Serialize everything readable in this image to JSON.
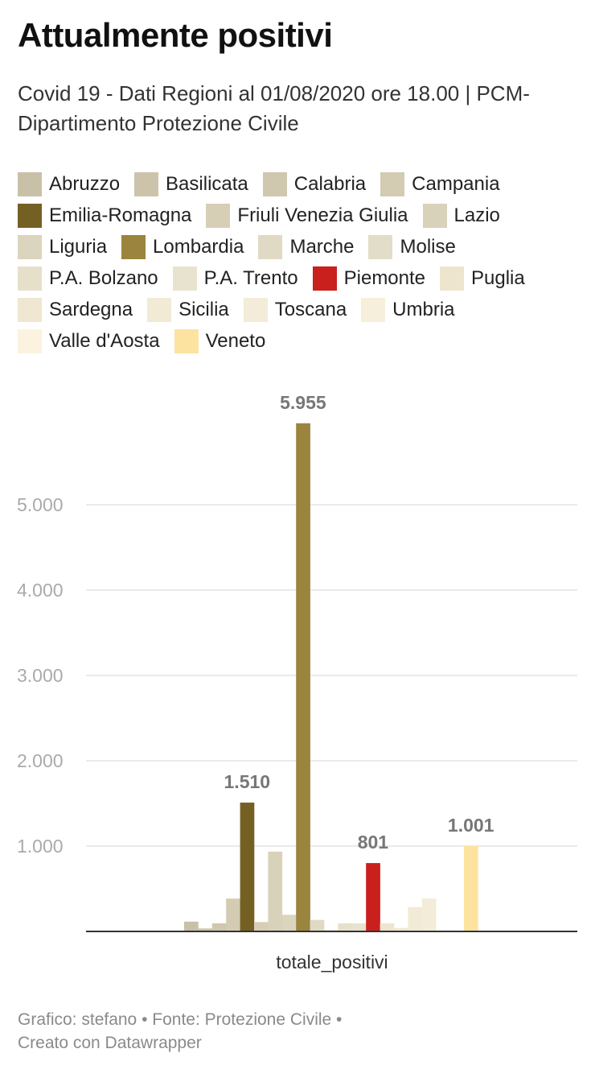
{
  "title": "Attualmente positivi",
  "subtitle": "Covid 19 - Dati Regioni al 01/08/2020 ore 18.00 | PCM- Dipartimento Protezione Civile",
  "footer": {
    "line1": "Grafico: stefano • Fonte: Protezione Civile •",
    "line2": "Creato con Datawrapper"
  },
  "chart_data": {
    "type": "bar",
    "title": "Attualmente positivi",
    "categories": [
      "totale_positivi"
    ],
    "xlabel": "",
    "ylabel": "",
    "ylim": [
      0,
      5955
    ],
    "yticks": [
      1000,
      2000,
      3000,
      4000,
      5000
    ],
    "ytick_labels": [
      "1.000",
      "2.000",
      "3.000",
      "4.000",
      "5.000"
    ],
    "grid": true,
    "legend_position": "top",
    "series": [
      {
        "name": "Abruzzo",
        "values": [
          115
        ],
        "color": "#c9c0a8"
      },
      {
        "name": "Basilicata",
        "values": [
          35
        ],
        "color": "#cbc4ab"
      },
      {
        "name": "Calabria",
        "values": [
          95
        ],
        "color": "#cfc7ae"
      },
      {
        "name": "Campania",
        "values": [
          385
        ],
        "color": "#d3cbb2"
      },
      {
        "name": "Emilia-Romagna",
        "values": [
          1510
        ],
        "color": "#756024",
        "label": "1.510"
      },
      {
        "name": "Friuli Venezia Giulia",
        "values": [
          110
        ],
        "color": "#d6cfb6"
      },
      {
        "name": "Lazio",
        "values": [
          935
        ],
        "color": "#d8d2ba"
      },
      {
        "name": "Liguria",
        "values": [
          195
        ],
        "color": "#dbd5be"
      },
      {
        "name": "Lombardia",
        "values": [
          5955
        ],
        "color": "#9a843e",
        "label": "5.955"
      },
      {
        "name": "Marche",
        "values": [
          135
        ],
        "color": "#e0dac4"
      },
      {
        "name": "Molise",
        "values": [
          15
        ],
        "color": "#e2ddc8"
      },
      {
        "name": "P.A. Bolzano",
        "values": [
          95
        ],
        "color": "#e6e0cb"
      },
      {
        "name": "P.A. Trento",
        "values": [
          95
        ],
        "color": "#e8e3cf"
      },
      {
        "name": "Piemonte",
        "values": [
          801
        ],
        "color": "#c9201d",
        "label": "801"
      },
      {
        "name": "Puglia",
        "values": [
          95
        ],
        "color": "#ede5cd"
      },
      {
        "name": "Sardegna",
        "values": [
          40
        ],
        "color": "#efe7d1"
      },
      {
        "name": "Sicilia",
        "values": [
          285
        ],
        "color": "#f1ead5"
      },
      {
        "name": "Toscana",
        "values": [
          385
        ],
        "color": "#f3ecd8"
      },
      {
        "name": "Umbria",
        "values": [
          10
        ],
        "color": "#f5efdc"
      },
      {
        "name": "Valle d'Aosta",
        "values": [
          5
        ],
        "color": "#fbf3df"
      },
      {
        "name": "Veneto",
        "values": [
          1001
        ],
        "color": "#fde3a0",
        "label": "1.001"
      }
    ]
  }
}
